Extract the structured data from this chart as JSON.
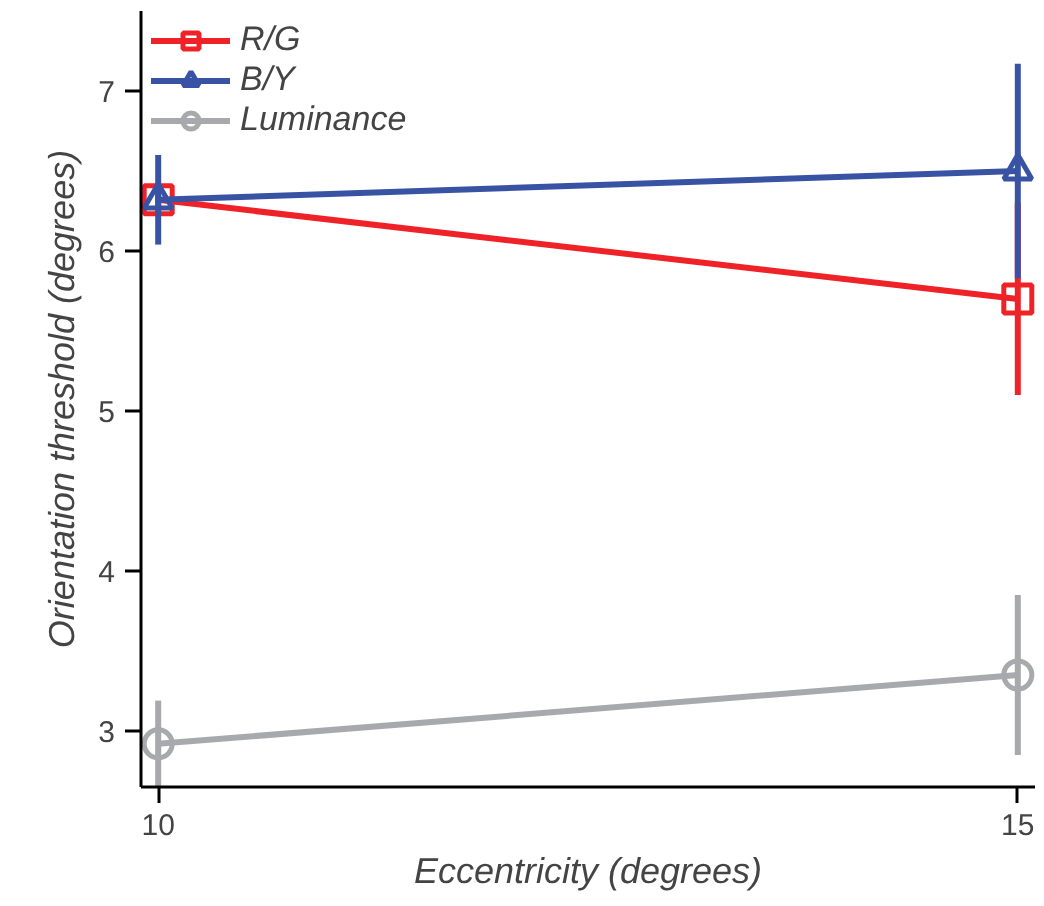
{
  "chart_data": {
    "type": "line",
    "xlabel": "Eccentricity (degrees)",
    "ylabel": "Orientation threshold (degrees)",
    "x": [
      10,
      15
    ],
    "xlim": [
      9.9,
      15.1
    ],
    "xticks": [
      10,
      15
    ],
    "ylim": [
      2.65,
      7.5
    ],
    "yticks": [
      3,
      4,
      5,
      6,
      7
    ],
    "grid": false,
    "legend": "top left",
    "series": [
      {
        "name": "R/G",
        "color": "#ee2227",
        "marker": "square",
        "values": [
          6.32,
          5.7
        ],
        "errors": [
          0.1,
          0.6
        ]
      },
      {
        "name": "B/Y",
        "color": "#3953a4",
        "marker": "triangle",
        "values": [
          6.32,
          6.5
        ],
        "errors": [
          0.28,
          0.67
        ]
      },
      {
        "name": "Luminance",
        "color": "#a7a9ac",
        "marker": "circle",
        "values": [
          2.92,
          3.35
        ],
        "errors": [
          0.27,
          0.5
        ]
      }
    ]
  }
}
